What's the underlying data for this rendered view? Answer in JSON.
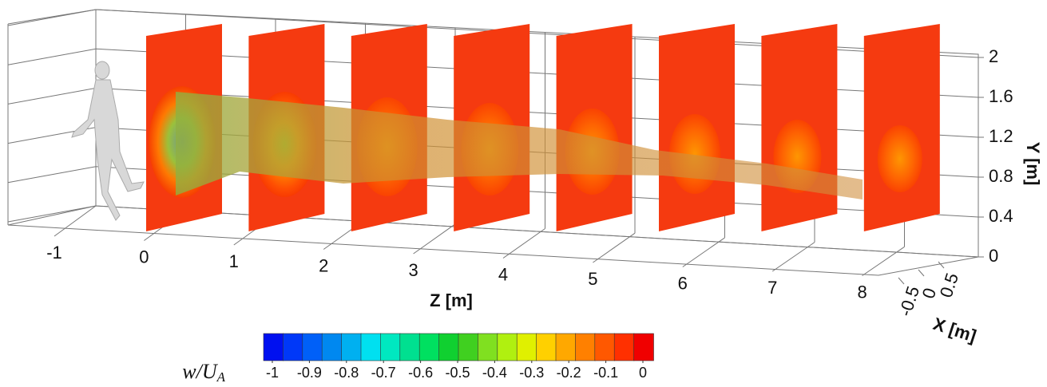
{
  "chart_data": {
    "type": "slices3d",
    "zlabel": "Z [m]",
    "ylabel": "Y [m]",
    "xlabel": "X [m]",
    "zticks": [
      -1,
      0,
      1,
      2,
      3,
      4,
      5,
      6,
      7,
      8
    ],
    "yticks": [
      0,
      0.4,
      0.8,
      1.2,
      1.6,
      2
    ],
    "xticks": [
      -0.5,
      0,
      0.5
    ],
    "colorbar": {
      "label": {
        "main": "w/U",
        "sub": "A"
      },
      "clim": [
        -1,
        0
      ],
      "ticks": [
        -1,
        -0.9,
        -0.8,
        -0.7,
        -0.6,
        -0.5,
        -0.4,
        -0.3,
        -0.2,
        -0.1,
        0
      ],
      "colors": [
        "#0010f0",
        "#0038f8",
        "#0060f8",
        "#0088f0",
        "#00b0f0",
        "#00e0f0",
        "#00e8c0",
        "#00e090",
        "#00e060",
        "#10d030",
        "#40d020",
        "#80e020",
        "#b0f010",
        "#e0f000",
        "#ffd000",
        "#ffa800",
        "#ff8000",
        "#ff5800",
        "#ff3000",
        "#f00000"
      ]
    }
  }
}
